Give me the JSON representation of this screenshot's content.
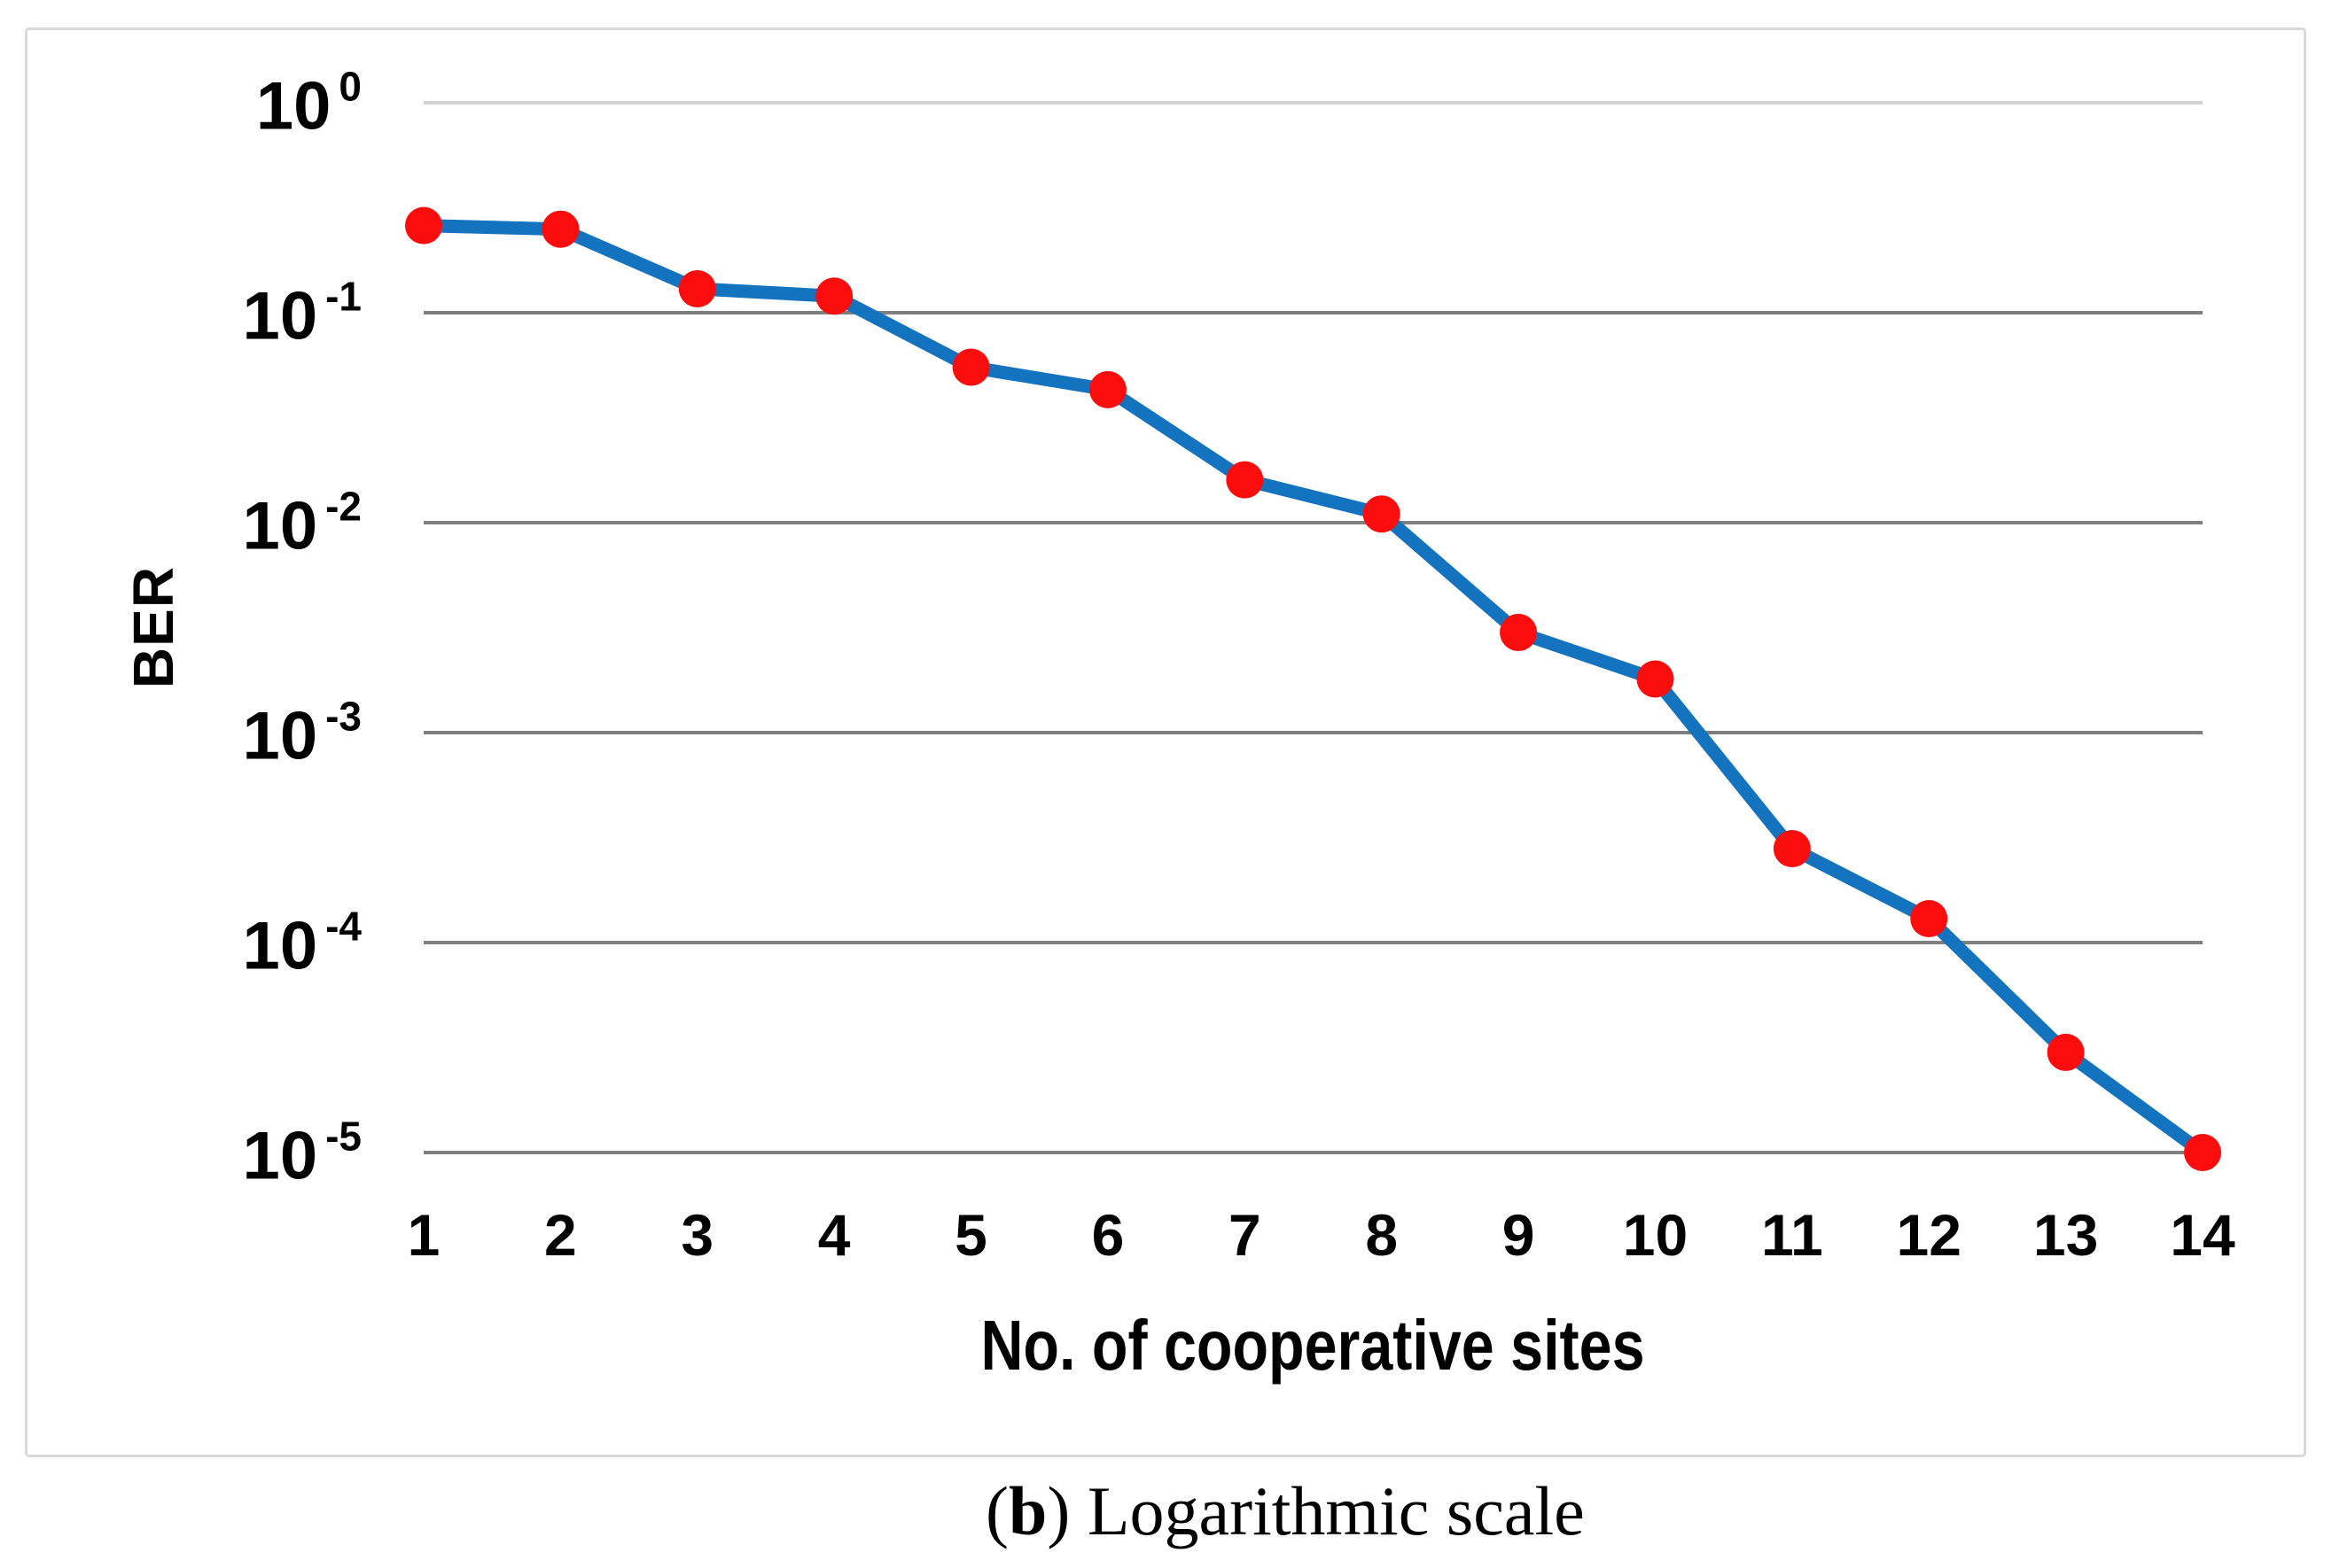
{
  "page": {
    "background": "#ffffff"
  },
  "panel": {
    "border_color": "#d9d9d9"
  },
  "caption": {
    "open_paren": "(",
    "bold_letter": "b",
    "rest": ") Logarithmic scale"
  },
  "chart_data": {
    "type": "line",
    "title": "",
    "xlabel": "No. of cooperative sites",
    "ylabel": "BER",
    "x_scale": "linear",
    "y_scale": "log",
    "categories": [
      1,
      2,
      3,
      4,
      5,
      6,
      7,
      8,
      9,
      10,
      11,
      12,
      13,
      14
    ],
    "series": [
      {
        "name": "BER",
        "values": [
          0.26,
          0.25,
          0.13,
          0.12,
          0.055,
          0.043,
          0.016,
          0.011,
          0.003,
          0.0018,
          0.00028,
          0.00013,
          3e-05,
          1e-05
        ]
      }
    ],
    "ylim": [
      1e-05,
      1
    ],
    "xlim": [
      1,
      14
    ],
    "y_tick_base": "10",
    "y_tick_exponents": [
      0,
      -1,
      -2,
      -3,
      -4,
      -5
    ],
    "grid": true,
    "legend": "none",
    "colors": {
      "line": "#1473bf",
      "marker": "#fb0d0d",
      "gridline": "#7f7f7f",
      "gridline_top": "#d2d2d2",
      "text": "#000000"
    }
  }
}
